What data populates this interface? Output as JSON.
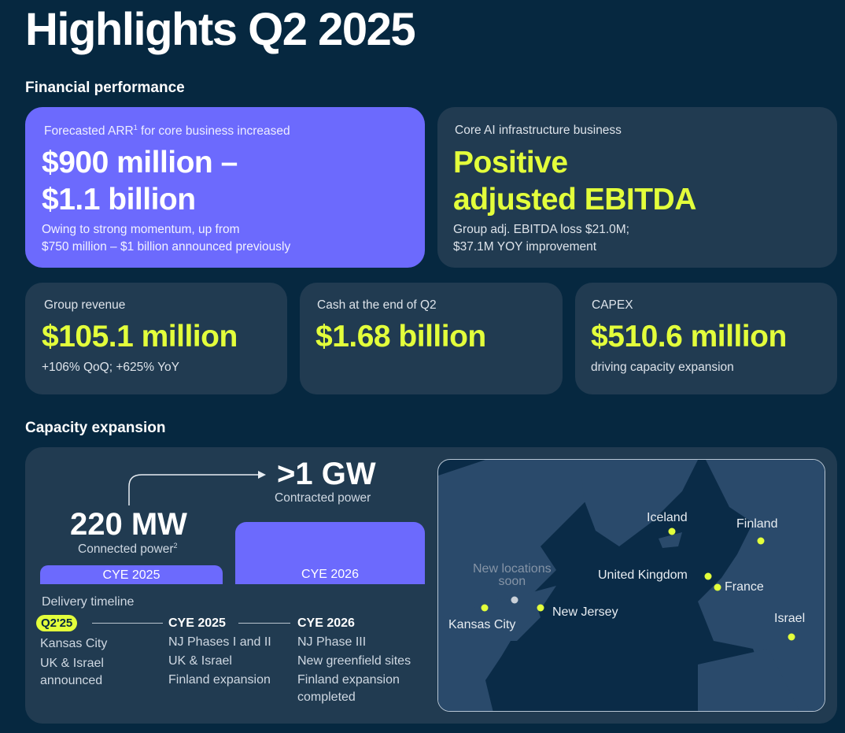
{
  "title": "Highlights Q2 2025",
  "financial": {
    "heading": "Financial performance",
    "arr": {
      "label": "Forecasted ARR",
      "sup": "1",
      "label_rest": " for core business increased",
      "value_line1": "$900 million –",
      "value_line2": "$1.1 billion",
      "note_line1": "Owing to strong momentum, up from",
      "note_line2": "$750 million – $1 billion announced previously"
    },
    "ebitda": {
      "label": "Core AI infrastructure business",
      "value_line1": "Positive",
      "value_line2": "adjusted EBITDA",
      "note_line1": "Group adj. EBITDA loss $21.0M;",
      "note_line2": "$37.1M YOY improvement"
    },
    "revenue": {
      "label": "Group revenue",
      "value": "$105.1 million",
      "note": "+106% QoQ; +625% YoY"
    },
    "cash": {
      "label": "Cash at the end of Q2",
      "value": "$1.68 billion"
    },
    "capex": {
      "label": "CAPEX",
      "value": "$510.6 million",
      "note": "driving capacity expansion"
    }
  },
  "capacity": {
    "heading": "Capacity expansion",
    "connected": {
      "value": "220 MW",
      "label": "Connected power",
      "sup": "2",
      "bar": "CYE 2025"
    },
    "contracted": {
      "value": ">1 GW",
      "label": "Contracted power",
      "bar": "CYE 2026"
    },
    "timeline": {
      "heading": "Delivery timeline",
      "stages": [
        {
          "label": "Q2'25",
          "items": [
            "Kansas City",
            "UK & Israel",
            "announced"
          ]
        },
        {
          "label": "CYE 2025",
          "items": [
            "NJ Phases I and II",
            "UK & Israel",
            "Finland expansion"
          ]
        },
        {
          "label": "CYE 2026",
          "items": [
            "NJ Phase III",
            "New greenfield sites",
            "Finland expansion",
            "completed"
          ]
        }
      ]
    },
    "map": {
      "locations": [
        "Iceland",
        "Finland",
        "United Kingdom",
        "France",
        "Israel",
        "Kansas City",
        "New Jersey"
      ],
      "soon_line1": "New locations",
      "soon_line2": "soon"
    }
  },
  "colors": {
    "background": "#062840",
    "card": "#213b51",
    "accent_purple": "#6c6afd",
    "accent_lime": "#e3ff3b"
  }
}
